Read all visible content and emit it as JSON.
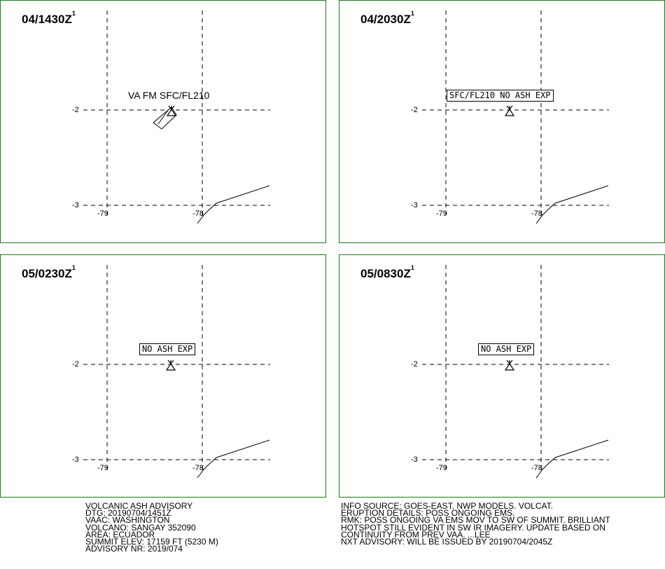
{
  "panels": [
    {
      "time": "04/1430Z",
      "sup": "1",
      "label": "VA FM SFC/FL210",
      "label_boxed": false,
      "ash_area": true
    },
    {
      "time": "04/2030Z",
      "sup": "1",
      "label": "SFC/FL210 NO ASH EXP",
      "label_boxed": true,
      "ash_area": false
    },
    {
      "time": "05/0230Z",
      "sup": "1",
      "label": "NO ASH EXP",
      "label_boxed": true,
      "ash_area": false
    },
    {
      "time": "05/0830Z",
      "sup": "1",
      "label": "NO ASH EXP",
      "label_boxed": true,
      "ash_area": false
    }
  ],
  "grid": {
    "lat_labels": [
      "-2",
      "-3"
    ],
    "lon_labels": [
      "-79",
      "-78"
    ]
  },
  "advisory_left": [
    "VOLCANIC ASH ADVISORY",
    "DTG: 20190704/1451Z",
    "VAAC: WASHINGTON",
    "VOLCANO: SANGAY 352090",
    "AREA: ECUADOR",
    "SUMMIT ELEV: 17159 FT (5230 M)",
    "ADVISORY NR: 2019/074"
  ],
  "advisory_right": [
    "INFO SOURCE: GOES-EAST. NWP MODELS. VOLCAT.",
    "ERUPTION DETAILS: POSS ONGOING EMS.",
    "RMK: POSS ONGOING VA EMS MOV TO SW OF SUMMIT. BRILLIANT",
    "HOTSPOT STILL EVIDENT IN SW IR IMAGERY. UPDATE BASED ON",
    "CONTINUITY FROM PREV VAA. ...LEE",
    "NXT ADVISORY: WILL BE ISSUED BY 20190704/2045Z"
  ],
  "colors": {
    "frame": "#1f7a1f",
    "ink": "#000000"
  },
  "icons": {
    "volcano": "volcano-icon"
  }
}
